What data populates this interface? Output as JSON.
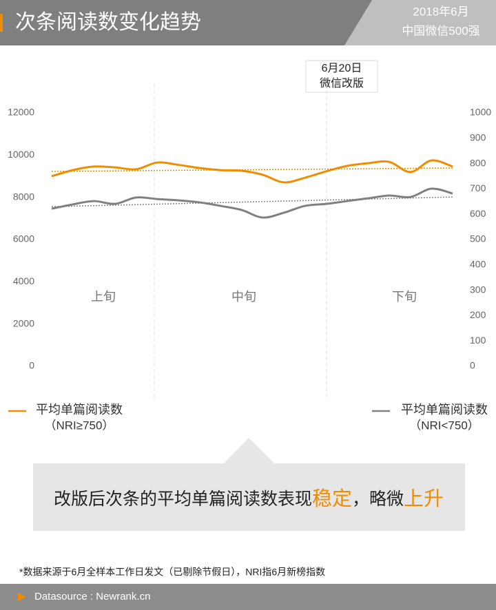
{
  "header": {
    "title": "次条阅读数变化趋势",
    "date": "2018年6月",
    "scope": "中国微信500强"
  },
  "chart_data": {
    "type": "line",
    "categories": [
      null,
      null,
      null,
      null,
      null,
      null,
      null,
      null,
      null,
      null,
      null,
      null,
      null,
      null,
      null,
      null,
      null,
      null,
      null,
      null
    ],
    "periods": [
      "上旬",
      "中旬",
      "下旬"
    ],
    "annotation": {
      "date": "6月20日",
      "text": "微信改版"
    },
    "series": [
      {
        "name": "平均单篇阅读数",
        "group": "（NRI≥750）",
        "color": "#f08c00",
        "axis": "y",
        "values": [
          9000,
          9290,
          9460,
          9420,
          9330,
          9650,
          9540,
          9390,
          9290,
          9260,
          9070,
          8710,
          8930,
          9230,
          9490,
          9620,
          9680,
          9200,
          9750,
          9460
        ],
        "trend": [
          9230,
          9390
        ]
      },
      {
        "name": "平均单篇阅读数",
        "group": "（NRI<750）",
        "color": "#808080",
        "axis": "y2",
        "values": [
          622,
          639,
          652,
          641,
          666,
          660,
          655,
          647,
          633,
          617,
          587,
          606,
          633,
          641,
          652,
          663,
          674,
          668,
          701,
          682
        ],
        "trend": [
          630,
          668
        ]
      }
    ],
    "ylim": [
      0,
      12000
    ],
    "yticks": [
      0,
      2000,
      4000,
      6000,
      8000,
      10000,
      12000
    ],
    "y2lim": [
      0,
      1000
    ],
    "y2ticks": [
      0,
      100,
      200,
      300,
      400,
      500,
      600,
      700,
      800,
      900,
      1000
    ]
  },
  "callout": [
    {
      "text": "改版后次条的平均单篇阅读数表现",
      "highlight": false
    },
    {
      "text": "稳定",
      "highlight": true
    },
    {
      "text": "，略微",
      "highlight": false
    },
    {
      "text": "上升",
      "highlight": true
    }
  ],
  "note": "*数据来源于6月全样本工作日发文（已剔除节假日），NRI指6月新榜指数",
  "footer": "Datasource : Newrank.cn"
}
